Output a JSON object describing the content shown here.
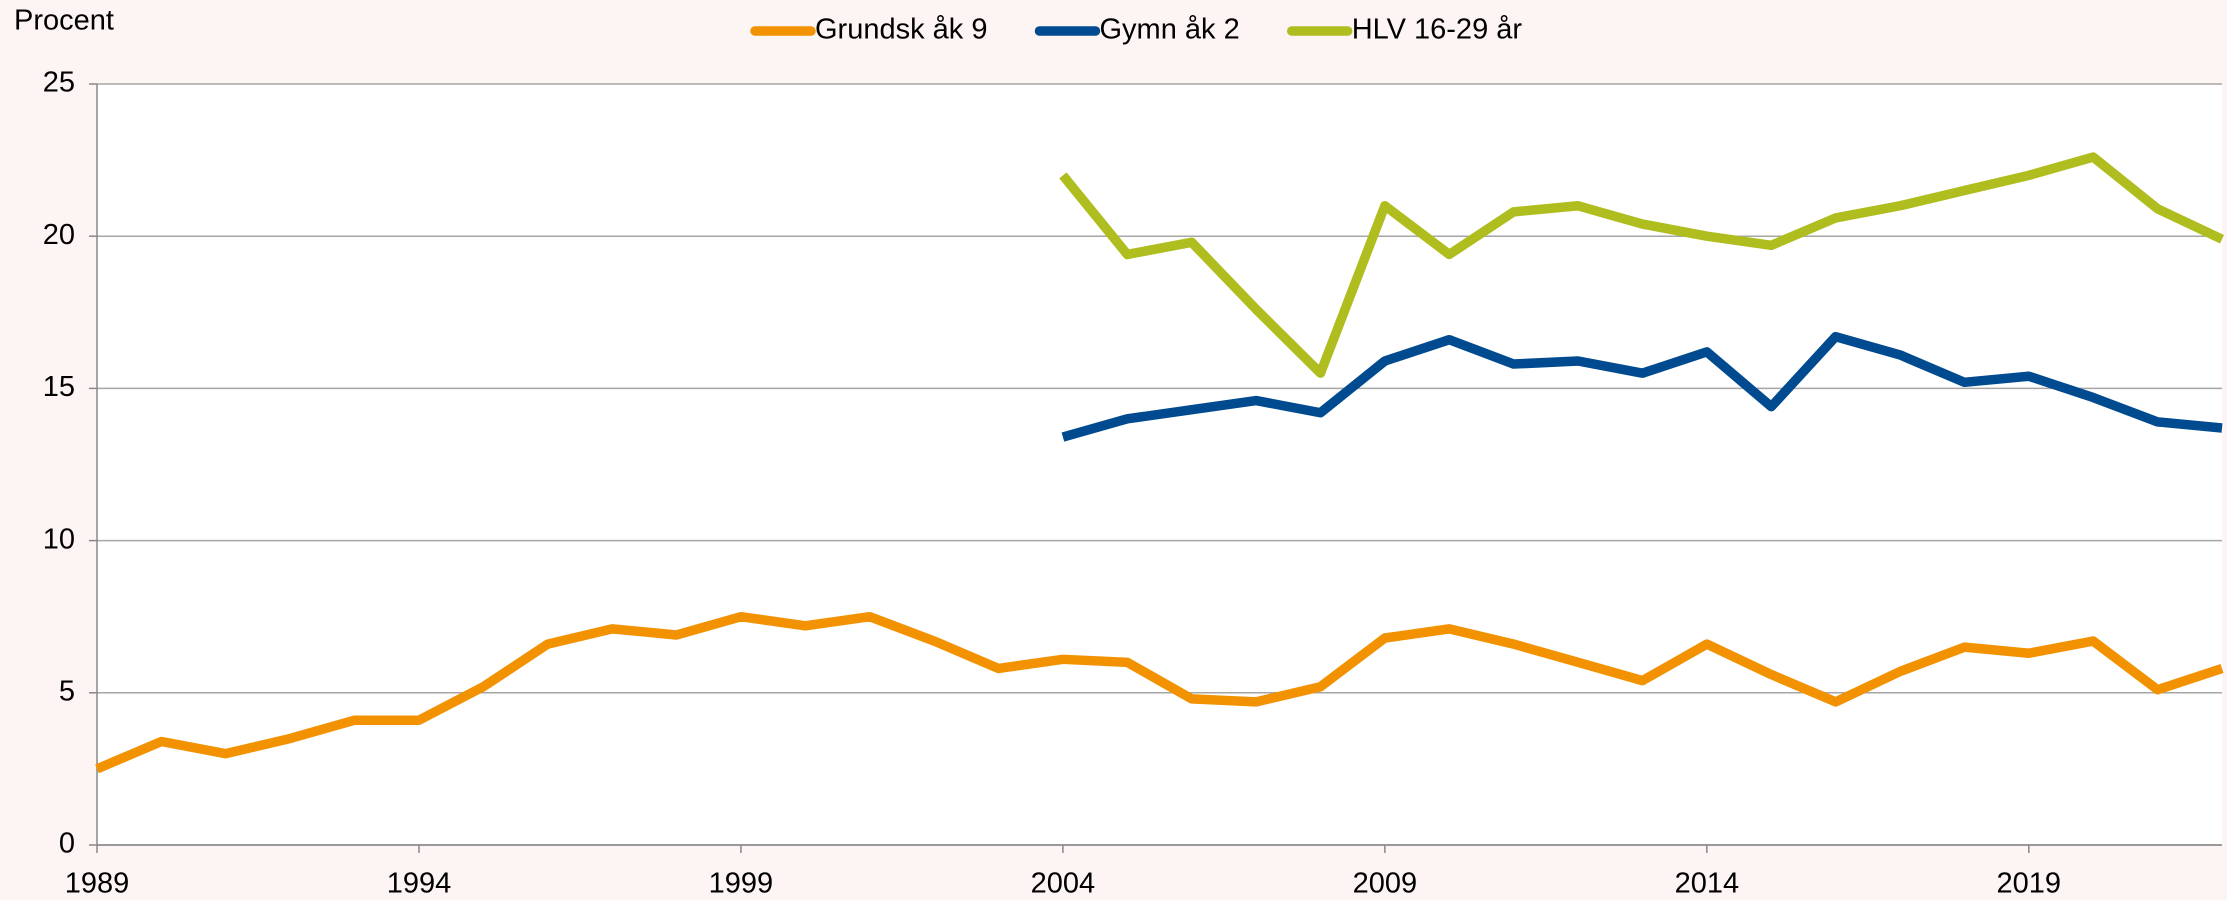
{
  "chart_data": {
    "type": "line",
    "y_label": "Procent",
    "x": [
      1989,
      1990,
      1991,
      1992,
      1993,
      1994,
      1995,
      1996,
      1997,
      1998,
      1999,
      2000,
      2001,
      2002,
      2003,
      2004,
      2005,
      2006,
      2007,
      2008,
      2009,
      2010,
      2011,
      2012,
      2013,
      2014,
      2015,
      2016,
      2017,
      2018,
      2019,
      2020,
      2021,
      2022
    ],
    "series": [
      {
        "name": "Grundsk åk 9",
        "color": "#f39200",
        "values": [
          2.5,
          3.4,
          3.0,
          3.5,
          4.1,
          4.1,
          5.2,
          6.6,
          7.1,
          6.9,
          7.5,
          7.2,
          7.5,
          6.7,
          5.8,
          6.1,
          6.0,
          4.8,
          4.7,
          5.2,
          6.8,
          7.1,
          6.6,
          6.0,
          5.4,
          6.6,
          5.6,
          4.7,
          5.7,
          6.5,
          6.3,
          6.7,
          5.1,
          5.8
        ]
      },
      {
        "name": "Gymn åk 2",
        "color": "#004a8f",
        "values": [
          null,
          null,
          null,
          null,
          null,
          null,
          null,
          null,
          null,
          null,
          null,
          null,
          null,
          null,
          null,
          13.4,
          14.0,
          14.3,
          14.6,
          14.2,
          15.9,
          16.6,
          15.8,
          15.9,
          15.5,
          16.2,
          14.4,
          16.7,
          16.1,
          15.2,
          15.4,
          14.7,
          13.9,
          13.7
        ]
      },
      {
        "name": "HLV 16-29 år",
        "color": "#b0bd1e",
        "values": [
          null,
          null,
          null,
          null,
          null,
          null,
          null,
          null,
          null,
          null,
          null,
          null,
          null,
          null,
          null,
          22.0,
          19.4,
          19.8,
          17.6,
          15.5,
          21.0,
          19.4,
          20.8,
          21.0,
          20.4,
          20.0,
          19.7,
          20.6,
          21.0,
          21.5,
          22.0,
          22.6,
          20.9,
          19.9
        ]
      }
    ],
    "xlim": [
      1989,
      2022
    ],
    "xticks": [
      1989,
      1994,
      1999,
      2004,
      2009,
      2014,
      2019
    ],
    "ylim": [
      0,
      25
    ],
    "yticks": [
      0,
      5,
      10,
      15,
      20,
      25
    ],
    "grid": true,
    "legend": "top"
  }
}
